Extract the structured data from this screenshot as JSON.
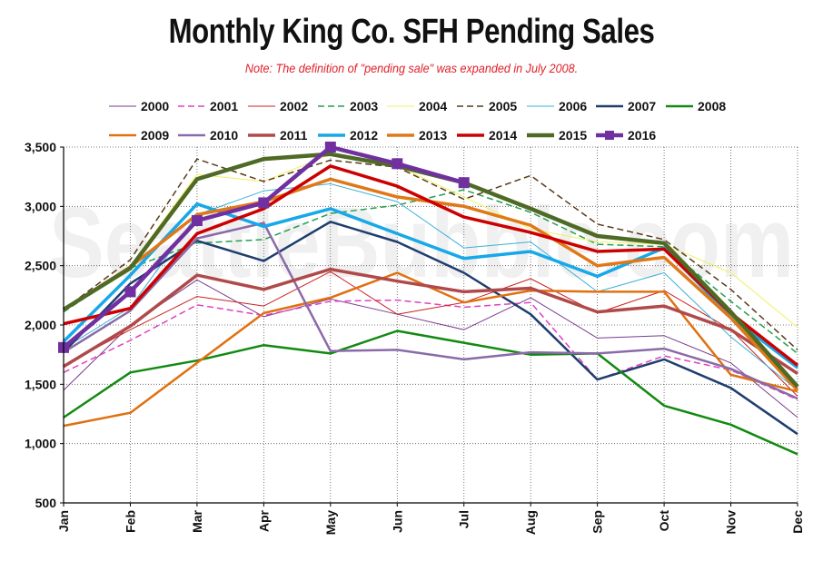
{
  "chart_data": {
    "type": "line",
    "title": "Monthly King Co. SFH Pending Sales",
    "subtitle": "Note: The definition of \"pending sale\" was expanded in July 2008.",
    "categories": [
      "Jan",
      "Feb",
      "Mar",
      "Apr",
      "May",
      "Jun",
      "Jul",
      "Aug",
      "Sep",
      "Oct",
      "Nov",
      "Dec"
    ],
    "ylim": [
      500,
      3500
    ],
    "yticks": [
      500,
      1000,
      1500,
      2000,
      2500,
      3000,
      3500
    ],
    "ytick_labels": [
      "500",
      "1,000",
      "1,500",
      "2,000",
      "2,500",
      "3,000",
      "3,500"
    ],
    "grid": true,
    "legend_position": "top",
    "watermark": "SeattleBubble.com",
    "series": [
      {
        "name": "2000",
        "color": "#7a3b8f",
        "dash": "",
        "width": 1,
        "values": [
          1450,
          2000,
          2380,
          2070,
          2220,
          2090,
          1960,
          2230,
          1890,
          1910,
          1680,
          1220
        ]
      },
      {
        "name": "2001",
        "color": "#e040c0",
        "dash": "7,4",
        "width": 1.5,
        "values": [
          1600,
          1870,
          2170,
          2080,
          2200,
          2210,
          2150,
          2190,
          1540,
          1740,
          1620,
          1370
        ]
      },
      {
        "name": "2002",
        "color": "#cc2020",
        "dash": "",
        "width": 1,
        "values": [
          1660,
          1960,
          2240,
          2160,
          2450,
          2090,
          2190,
          2390,
          2100,
          2290,
          1960,
          1400
        ]
      },
      {
        "name": "2003",
        "color": "#20a050",
        "dash": "7,4",
        "width": 1.5,
        "values": [
          2110,
          2480,
          2690,
          2720,
          2940,
          3010,
          3140,
          2950,
          2680,
          2660,
          2200,
          1760
        ]
      },
      {
        "name": "2004",
        "color": "#f0f060",
        "dash": "",
        "width": 1,
        "values": [
          2120,
          2500,
          3270,
          3210,
          3440,
          3340,
          3080,
          2810,
          2700,
          2680,
          2440,
          1980
        ]
      },
      {
        "name": "2005",
        "color": "#5a3a1a",
        "dash": "7,4",
        "width": 1.5,
        "values": [
          2130,
          2550,
          3400,
          3210,
          3390,
          3330,
          3060,
          3260,
          2850,
          2720,
          2300,
          1790
        ]
      },
      {
        "name": "2006",
        "color": "#3ab0d8",
        "dash": "",
        "width": 1,
        "values": [
          1800,
          2150,
          2930,
          3130,
          3190,
          3040,
          2650,
          2700,
          2280,
          2440,
          1900,
          1450
        ]
      },
      {
        "name": "2007",
        "color": "#1f3d6e",
        "dash": "",
        "width": 2.5,
        "values": [
          1770,
          2350,
          2710,
          2540,
          2870,
          2700,
          2440,
          2090,
          1540,
          1710,
          1470,
          1080
        ]
      },
      {
        "name": "2008",
        "color": "#128a12",
        "dash": "",
        "width": 2.5,
        "values": [
          1220,
          1600,
          1700,
          1830,
          1760,
          1950,
          1850,
          1750,
          1760,
          1320,
          1160,
          910
        ]
      },
      {
        "name": "2009",
        "color": "#e07010",
        "dash": "",
        "width": 2.5,
        "values": [
          1150,
          1260,
          1680,
          2100,
          2230,
          2440,
          2190,
          2290,
          2280,
          2280,
          1580,
          1440
        ]
      },
      {
        "name": "2010",
        "color": "#8a6aa8",
        "dash": "",
        "width": 2.5,
        "values": [
          1770,
          2120,
          2730,
          2860,
          1780,
          1790,
          1710,
          1770,
          1760,
          1800,
          1630,
          1380
        ]
      },
      {
        "name": "2011",
        "color": "#b04a4a",
        "dash": "",
        "width": 3.5,
        "values": [
          1650,
          1990,
          2420,
          2300,
          2470,
          2370,
          2280,
          2310,
          2110,
          2160,
          1960,
          1590
        ]
      },
      {
        "name": "2012",
        "color": "#18a8e8",
        "dash": "",
        "width": 3.5,
        "values": [
          1860,
          2420,
          3020,
          2830,
          2980,
          2770,
          2560,
          2620,
          2410,
          2650,
          2070,
          1640
        ]
      },
      {
        "name": "2013",
        "color": "#e07818",
        "dash": "",
        "width": 3.5,
        "values": [
          2130,
          2490,
          2930,
          3040,
          3230,
          3080,
          3000,
          2840,
          2500,
          2570,
          2060,
          1450
        ]
      },
      {
        "name": "2014",
        "color": "#cc0000",
        "dash": "",
        "width": 3.5,
        "values": [
          2010,
          2140,
          2770,
          2980,
          3340,
          3170,
          2910,
          2780,
          2620,
          2640,
          2100,
          1660
        ]
      },
      {
        "name": "2015",
        "color": "#4e6a25",
        "dash": "",
        "width": 4.5,
        "values": [
          2130,
          2480,
          3230,
          3400,
          3440,
          3340,
          3200,
          2980,
          2750,
          2690,
          2110,
          1480
        ]
      },
      {
        "name": "2016",
        "color": "#7030a0",
        "dash": "",
        "width": 4.5,
        "marker": "square",
        "values": [
          1810,
          2280,
          2880,
          3030,
          3500,
          3360,
          3200,
          null,
          null,
          null,
          null,
          null
        ]
      }
    ]
  }
}
